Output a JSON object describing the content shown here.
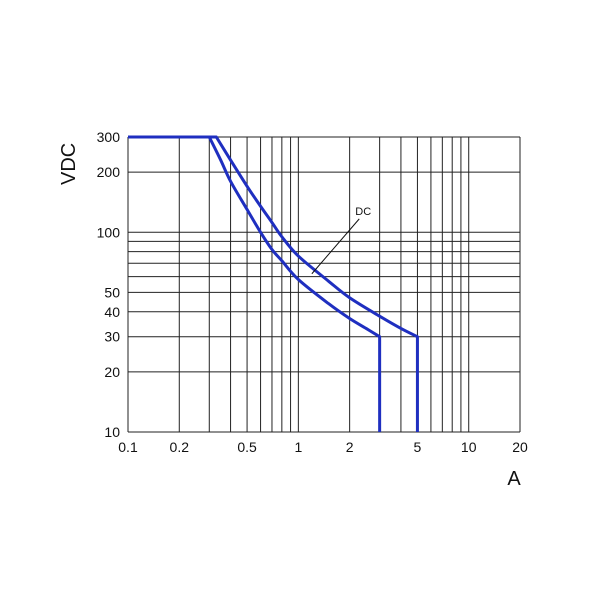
{
  "chart_data": {
    "type": "line",
    "title": "",
    "xlabel": "A",
    "ylabel": "VDC",
    "x_scale": "log",
    "y_scale": "log",
    "xlim": [
      0.1,
      20
    ],
    "ylim": [
      10,
      300
    ],
    "grid": true,
    "x_gridlines": [
      0.1,
      0.2,
      0.3,
      0.4,
      0.5,
      0.6,
      0.7,
      0.8,
      0.9,
      1,
      2,
      3,
      4,
      5,
      6,
      7,
      8,
      9,
      10,
      20
    ],
    "y_gridlines": [
      10,
      20,
      30,
      40,
      50,
      60,
      70,
      80,
      90,
      100,
      200,
      300
    ],
    "x_ticks": [
      {
        "value": 0.1,
        "label": "0.1"
      },
      {
        "value": 0.2,
        "label": "0.2"
      },
      {
        "value": 0.5,
        "label": "0.5"
      },
      {
        "value": 1,
        "label": "1"
      },
      {
        "value": 2,
        "label": "2"
      },
      {
        "value": 5,
        "label": "5"
      },
      {
        "value": 10,
        "label": "10"
      },
      {
        "value": 20,
        "label": "20"
      }
    ],
    "y_ticks": [
      {
        "value": 10,
        "label": "10"
      },
      {
        "value": 20,
        "label": "20"
      },
      {
        "value": 30,
        "label": "30"
      },
      {
        "value": 40,
        "label": "40"
      },
      {
        "value": 50,
        "label": "50"
      },
      {
        "value": 100,
        "label": "100"
      },
      {
        "value": 200,
        "label": "200"
      },
      {
        "value": 300,
        "label": "300"
      }
    ],
    "series": [
      {
        "color": "#1f2fc0",
        "points": [
          [
            0.1,
            300
          ],
          [
            0.3,
            300
          ],
          [
            0.35,
            230
          ],
          [
            0.4,
            180
          ],
          [
            0.5,
            130
          ],
          [
            0.6,
            100
          ],
          [
            0.7,
            82
          ],
          [
            0.8,
            72
          ],
          [
            1.0,
            58
          ],
          [
            1.5,
            44
          ],
          [
            2.0,
            37
          ],
          [
            2.5,
            33
          ],
          [
            3,
            30
          ],
          [
            3,
            10
          ]
        ]
      },
      {
        "color": "#1f2fc0",
        "points": [
          [
            0.1,
            300
          ],
          [
            0.33,
            300
          ],
          [
            0.4,
            230
          ],
          [
            0.5,
            170
          ],
          [
            0.6,
            135
          ],
          [
            0.7,
            112
          ],
          [
            0.8,
            95
          ],
          [
            1.0,
            76
          ],
          [
            1.5,
            57
          ],
          [
            2.0,
            47
          ],
          [
            3.0,
            38
          ],
          [
            4.0,
            33
          ],
          [
            5,
            30
          ],
          [
            5,
            10
          ]
        ]
      }
    ],
    "annotation": {
      "text": "DC",
      "x": 1.2,
      "y": 62,
      "label_x": 2.1,
      "label_y": 128
    }
  }
}
